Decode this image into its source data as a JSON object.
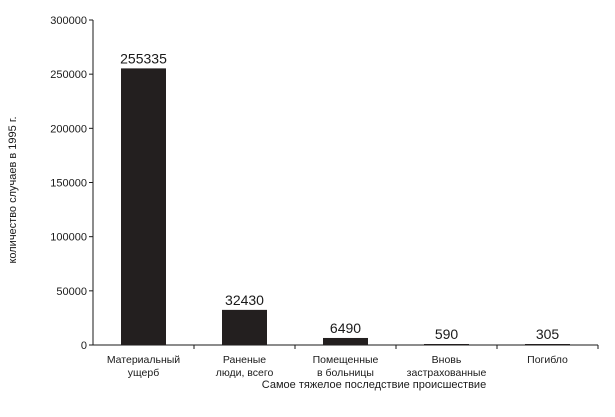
{
  "chart_data": {
    "type": "bar",
    "title": "",
    "xlabel": "Самое тяжелое последствие происшествие",
    "ylabel": "количество случаев в 1995 г.",
    "ylim": [
      0,
      300000
    ],
    "yticks": [
      0,
      50000,
      100000,
      150000,
      200000,
      250000,
      300000
    ],
    "yticks_text": [
      "0",
      "50000",
      "100000",
      "150000",
      "200000",
      "250000",
      "300000"
    ],
    "categories": [
      [
        "Материальный",
        "ущерб"
      ],
      [
        "Раненые",
        "люди, всего"
      ],
      [
        "Помещенные",
        "в больницы"
      ],
      [
        "Вновь",
        "застрахованные"
      ],
      [
        "Погибло"
      ]
    ],
    "values": [
      255335,
      32430,
      6490,
      590,
      305
    ],
    "value_labels": [
      "255335",
      "32430",
      "6490",
      "590",
      "305"
    ],
    "bar_color": "#231f1f",
    "grid": false,
    "legend": "none"
  }
}
